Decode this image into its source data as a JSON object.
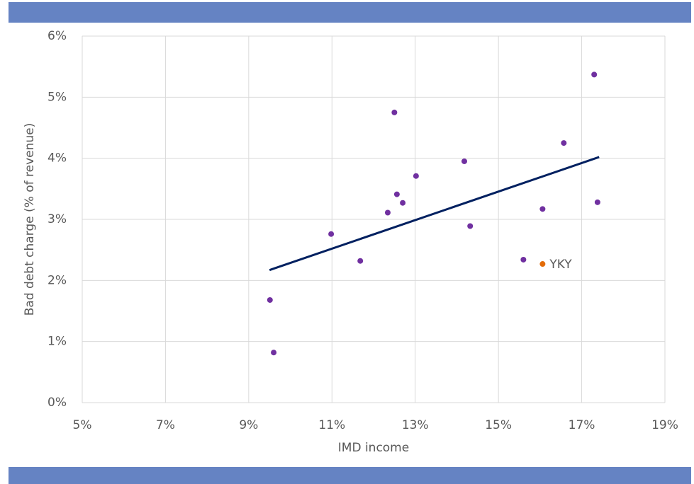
{
  "chart_data": {
    "type": "scatter",
    "xlabel": "IMD income",
    "ylabel": "Bad debt charge (% of revenue)",
    "xlim": [
      5,
      19
    ],
    "xticks": [
      {
        "value": 5,
        "label": "5%"
      },
      {
        "value": 7,
        "label": "7%"
      },
      {
        "value": 9,
        "label": "9%"
      },
      {
        "value": 11,
        "label": "11%"
      },
      {
        "value": 13,
        "label": "13%"
      },
      {
        "value": 15,
        "label": "15%"
      },
      {
        "value": 17,
        "label": "17%"
      },
      {
        "value": 19,
        "label": "19%"
      }
    ],
    "ylim": [
      0,
      6
    ],
    "yticks": [
      {
        "value": 0,
        "label": "0%"
      },
      {
        "value": 1,
        "label": "1%"
      },
      {
        "value": 2,
        "label": "2%"
      },
      {
        "value": 3,
        "label": "3%"
      },
      {
        "value": 4,
        "label": "4%"
      },
      {
        "value": 5,
        "label": "5%"
      },
      {
        "value": 6,
        "label": "6%"
      }
    ],
    "grid": true,
    "series": [
      {
        "color": "#7030a0",
        "x": [
          9.51,
          9.6,
          10.98,
          11.68,
          12.34,
          12.5,
          12.56,
          12.7,
          13.02,
          14.18,
          14.32,
          15.6,
          16.06,
          16.57,
          17.3,
          17.38
        ],
        "values": [
          1.68,
          0.82,
          2.76,
          2.32,
          3.11,
          4.75,
          3.41,
          3.27,
          3.71,
          3.95,
          2.89,
          2.34,
          3.17,
          4.25,
          5.37,
          3.28
        ]
      }
    ],
    "trendline": {
      "color": "#002060",
      "x": [
        9.5,
        17.42
      ],
      "values": [
        2.17,
        4.02
      ]
    },
    "annotations": [
      {
        "text": "YKY",
        "x": 16.06,
        "y": 2.27,
        "color": "#e36c09"
      }
    ]
  }
}
